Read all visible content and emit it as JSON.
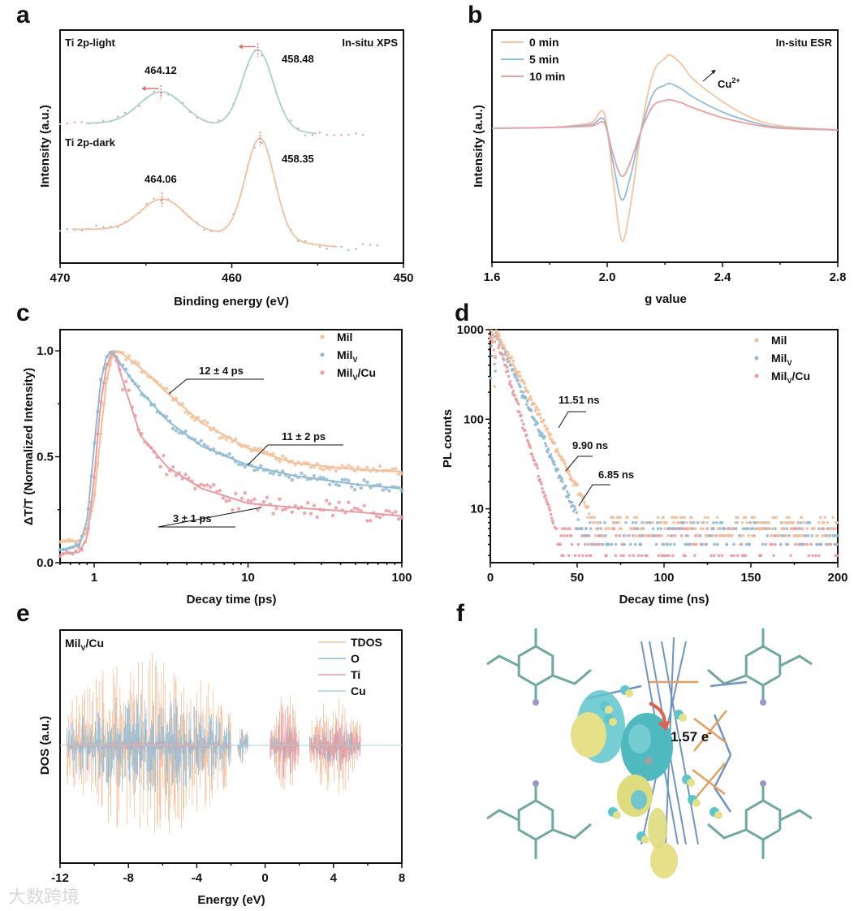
{
  "panels": {
    "a": "a",
    "b": "b",
    "c": "c",
    "d": "d",
    "e": "e",
    "f": "f"
  },
  "watermark": "大数跨境",
  "chart_data": [
    {
      "id": "a",
      "type": "line",
      "xlabel": "Binding energy (eV)",
      "ylabel": "Intensity (a.u.)",
      "xlim": [
        470,
        450
      ],
      "xticks": [
        "470",
        "460",
        "450"
      ],
      "xtick_values": [
        470,
        460,
        450
      ],
      "x_reversed": true,
      "ylim": [
        0,
        10
      ],
      "corner_label": "In-situ XPS",
      "series": [
        {
          "name": "Ti 2p-light",
          "line_color": "#a9d2cf",
          "point_color": "#e8a2a6",
          "baseline_left": 6.0,
          "baseline_right": 5.5,
          "peaks": [
            {
              "center": 464.12,
              "height": 1.35,
              "fwhm": 3.0,
              "label": "464.12"
            },
            {
              "center": 458.48,
              "height": 3.4,
              "fwhm": 2.1,
              "label": "458.48"
            }
          ],
          "fit_range": [
            468.5,
            455.0
          ],
          "data_range": [
            470,
            452
          ]
        },
        {
          "name": "Ti 2p-dark",
          "line_color": "#f3bf9d",
          "point_color": "#9dbcd0",
          "baseline_left": 1.45,
          "baseline_right": 0.7,
          "peaks": [
            {
              "center": 464.06,
              "height": 1.3,
              "fwhm": 2.9,
              "label": "464.06"
            },
            {
              "center": 458.35,
              "height": 4.3,
              "fwhm": 2.0,
              "label": "458.35"
            }
          ],
          "fit_range": [
            469.3,
            453.8
          ],
          "data_range": [
            470,
            451.5
          ]
        }
      ]
    },
    {
      "id": "b",
      "type": "line",
      "xlabel": "g value",
      "ylabel": "Intensity (a.u.)",
      "xlim": [
        1.6,
        2.8
      ],
      "xticks": [
        "1.6",
        "2.0",
        "2.4",
        "2.8"
      ],
      "xtick_values": [
        1.6,
        2.0,
        2.4,
        2.8
      ],
      "corner_label": "In-situ ESR",
      "annotation": "Cu",
      "annotation_sup": "2+",
      "x": [
        1.6,
        1.8,
        1.9,
        1.95,
        1.99,
        2.02,
        2.05,
        2.08,
        2.12,
        2.16,
        2.2,
        2.22,
        2.26,
        2.3,
        2.4,
        2.5,
        2.6,
        2.8
      ],
      "series": [
        {
          "name": "0 min",
          "color": "#f6c39f",
          "values": [
            0.02,
            0.03,
            0.06,
            0.1,
            0.2,
            -0.6,
            -1.36,
            -0.95,
            0.05,
            0.7,
            0.88,
            0.92,
            0.8,
            0.62,
            0.35,
            0.15,
            0.05,
            0
          ]
        },
        {
          "name": "5 min",
          "color": "#93bcd6",
          "values": [
            0.02,
            0.03,
            0.05,
            0.07,
            0.12,
            -0.4,
            -0.86,
            -0.58,
            0.03,
            0.45,
            0.55,
            0.57,
            0.5,
            0.4,
            0.22,
            0.1,
            0.03,
            0
          ]
        },
        {
          "name": "10 min",
          "color": "#eb9fa3",
          "values": [
            0.02,
            0.03,
            0.04,
            0.05,
            0.08,
            -0.3,
            -0.57,
            -0.4,
            0.01,
            0.3,
            0.36,
            0.37,
            0.33,
            0.27,
            0.15,
            0.07,
            0.02,
            0
          ]
        }
      ]
    },
    {
      "id": "c",
      "type": "scatter",
      "xlabel": "Decay time (ps)",
      "ylabel": "ΔT/T (Normalized Intensity)",
      "xscale": "log",
      "xlim": [
        0.6,
        100
      ],
      "xticks": [
        "1",
        "10",
        "100"
      ],
      "xtick_values": [
        1,
        10,
        100
      ],
      "ylim": [
        0,
        1.1
      ],
      "yticks": [
        "0.0",
        "0.5",
        "1.0"
      ],
      "ytick_values": [
        0,
        0.5,
        1.0
      ],
      "legend_position": "top-right",
      "x": [
        0.6,
        0.8,
        0.9,
        1,
        1.1,
        1.2,
        1.3,
        1.4,
        1.5,
        2,
        3,
        5,
        10,
        20,
        50,
        100
      ],
      "series": [
        {
          "name": "Mil",
          "sub": "",
          "suffix": "",
          "color": "#f4bf98",
          "fit": [
            0.1,
            0.1,
            0.15,
            0.3,
            0.6,
            0.85,
            0.97,
            1.0,
            0.99,
            0.92,
            0.8,
            0.66,
            0.54,
            0.47,
            0.44,
            0.43
          ],
          "lifetime": "12 ± 4 ps",
          "scatter_noise": 0.03
        },
        {
          "name": "Mil",
          "sub": "V",
          "suffix": "",
          "color": "#8fbad4",
          "fit": [
            0.06,
            0.08,
            0.2,
            0.55,
            0.85,
            0.97,
            1.0,
            0.97,
            0.93,
            0.81,
            0.67,
            0.55,
            0.46,
            0.41,
            0.37,
            0.35
          ],
          "lifetime": "11 ± 2 ps",
          "scatter_noise": 0.03
        },
        {
          "name": "Mil",
          "sub": "V",
          "suffix": "/Cu",
          "color": "#eb9a9f",
          "fit": [
            0.04,
            0.05,
            0.12,
            0.4,
            0.75,
            0.92,
            0.99,
            0.96,
            0.88,
            0.6,
            0.45,
            0.35,
            0.28,
            0.26,
            0.24,
            0.22
          ],
          "lifetime": "3 ± 1 ps",
          "scatter_noise": 0.07
        }
      ]
    },
    {
      "id": "d",
      "type": "scatter",
      "xlabel": "Decay time (ns)",
      "ylabel": "PL counts",
      "xlim": [
        0,
        200
      ],
      "xticks": [
        "0",
        "50",
        "100",
        "150",
        "200"
      ],
      "xtick_values": [
        0,
        50,
        100,
        150,
        200
      ],
      "yscale": "log",
      "ylim": [
        2.5,
        1000
      ],
      "yticks": [
        "10",
        "100",
        "1000"
      ],
      "ytick_values": [
        10,
        100,
        1000
      ],
      "legend_position": "top-right",
      "series": [
        {
          "name": "Mil",
          "sub": "",
          "suffix": "",
          "color": "#f4bf98",
          "peak_time": 3,
          "peak": 1000,
          "lifetime_ns": 11.51,
          "lifetime": "11.51 ns",
          "floor_levels": [
            5,
            6,
            7,
            8
          ]
        },
        {
          "name": "Mil",
          "sub": "V",
          "suffix": "",
          "color": "#8fbad4",
          "peak_time": 3,
          "peak": 950,
          "lifetime_ns": 9.9,
          "lifetime": "9.90 ns",
          "floor_levels": [
            4,
            5,
            6,
            7
          ]
        },
        {
          "name": "Mil",
          "sub": "V",
          "suffix": "/Cu",
          "color": "#eb9a9f",
          "peak_time": 3,
          "peak": 900,
          "lifetime_ns": 6.85,
          "lifetime": "6.85 ns",
          "floor_levels": [
            3,
            4,
            5,
            6
          ]
        }
      ]
    },
    {
      "id": "e",
      "type": "line",
      "title": "Mil",
      "title_sub": "V",
      "title_suffix": "/Cu",
      "xlabel": "Energy (eV)",
      "ylabel": "DOS (a.u.)",
      "xlim": [
        -12,
        8
      ],
      "xticks": [
        "-12",
        "-8",
        "-4",
        "0",
        "4",
        "8"
      ],
      "xtick_values": [
        -12,
        -8,
        -4,
        0,
        4,
        8
      ],
      "legend_position": "top-right",
      "series": [
        {
          "name": "TDOS",
          "color": "#f4bf98"
        },
        {
          "name": "O",
          "color": "#8fbad4"
        },
        {
          "name": "Ti",
          "color": "#e79aa3"
        },
        {
          "name": "Cu",
          "color": "#a9d4d4"
        }
      ],
      "bands": [
        {
          "range": [
            -11.6,
            -2.0
          ],
          "tdos": 1.0,
          "o": 0.55,
          "ti": 0.05
        },
        {
          "range": [
            -1.6,
            -1.0
          ],
          "tdos": 0.3,
          "o": 0.2,
          "ti": 0.02
        },
        {
          "range": [
            0.3,
            2.0
          ],
          "tdos": 0.6,
          "o": 0.2,
          "ti": 0.45
        },
        {
          "range": [
            2.6,
            5.6
          ],
          "tdos": 0.55,
          "o": 0.2,
          "ti": 0.3
        }
      ]
    }
  ],
  "panel_f": {
    "charge_label": "1.57 e",
    "charge_sup": "-"
  }
}
